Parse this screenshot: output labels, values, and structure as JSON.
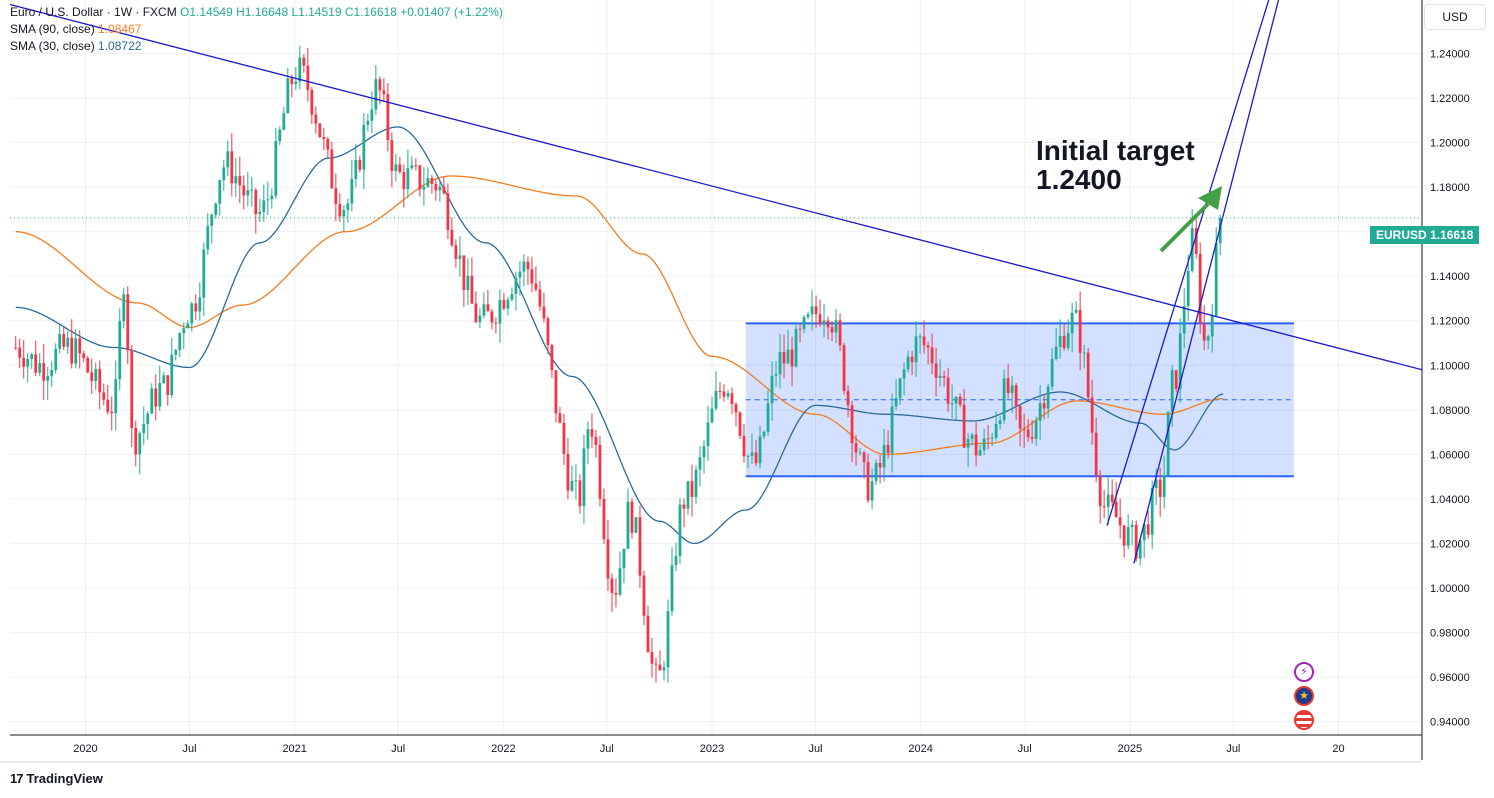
{
  "legend": {
    "title": "Euro / U.S. Dollar · 1W · FXCM",
    "ohlc": "O1.14549  H1.16648  L1.14519  C1.16618  +0.01407 (+1.22%)",
    "sma90_label": "SMA (90, close)",
    "sma90_value": "1.08467",
    "sma30_label": "SMA (30, close)",
    "sma30_value": "1.08722"
  },
  "currency": "USD",
  "price_tag": {
    "symbol": "EURUSD",
    "value": "1.16618"
  },
  "annotation": {
    "line1": "Initial target",
    "line2": "1.2400"
  },
  "brand": "TradingView",
  "icons": [
    "flash-icon",
    "eu-flag-icon",
    "us-flag-icon"
  ],
  "colors": {
    "up": "#22ab94",
    "down": "#f23645",
    "sma90": "#f57c1f",
    "sma30": "#2a6b9c",
    "trendline": "#1a1acc",
    "range": "#2962ff",
    "arrow": "#43a047"
  },
  "chart_data": {
    "type": "candlestick",
    "instrument": "EURUSD",
    "timeframe": "1W",
    "x_tick_labels": [
      "2020",
      "Jul",
      "2021",
      "Jul",
      "2022",
      "Jul",
      "2023",
      "Jul",
      "2024",
      "Jul",
      "2025",
      "Jul",
      "20"
    ],
    "y_ticks": [
      "1.24000",
      "1.22000",
      "1.20000",
      "1.18000",
      "1.16000",
      "1.14000",
      "1.12000",
      "1.10000",
      "1.08000",
      "1.06000",
      "1.04000",
      "1.02000",
      "1.00000",
      "0.98000",
      "0.96000",
      "0.94000"
    ],
    "y_range": [
      0.934,
      1.264
    ],
    "x_range": [
      "2019-08-22",
      "2026-05-27"
    ],
    "price_path": [
      [
        "2019-09-01",
        1.108
      ],
      [
        "2019-10-15",
        1.1
      ],
      [
        "2019-12-01",
        1.108
      ],
      [
        "2020-02-20",
        1.082
      ],
      [
        "2020-03-09",
        1.14
      ],
      [
        "2020-03-23",
        1.067
      ],
      [
        "2020-05-15",
        1.09
      ],
      [
        "2020-07-01",
        1.125
      ],
      [
        "2020-09-01",
        1.19
      ],
      [
        "2020-11-01",
        1.168
      ],
      [
        "2021-01-06",
        1.232
      ],
      [
        "2021-03-31",
        1.172
      ],
      [
        "2021-05-25",
        1.224
      ],
      [
        "2021-07-01",
        1.185
      ],
      [
        "2021-09-01",
        1.182
      ],
      [
        "2021-11-24",
        1.12
      ],
      [
        "2022-02-10",
        1.144
      ],
      [
        "2022-05-13",
        1.04
      ],
      [
        "2022-06-01",
        1.075
      ],
      [
        "2022-07-14",
        1.0
      ],
      [
        "2022-08-10",
        1.034
      ],
      [
        "2022-09-27",
        0.958
      ],
      [
        "2022-11-15",
        1.04
      ],
      [
        "2023-01-26",
        1.092
      ],
      [
        "2023-03-15",
        1.055
      ],
      [
        "2023-05-01",
        1.102
      ],
      [
        "2023-07-18",
        1.126
      ],
      [
        "2023-10-03",
        1.046
      ],
      [
        "2023-12-28",
        1.11
      ],
      [
        "2024-04-16",
        1.062
      ],
      [
        "2024-06-01",
        1.088
      ],
      [
        "2024-06-26",
        1.068
      ],
      [
        "2024-09-25",
        1.12
      ],
      [
        "2024-11-22",
        1.035
      ],
      [
        "2025-01-13",
        1.02
      ],
      [
        "2025-02-25",
        1.045
      ],
      [
        "2025-03-18",
        1.092
      ],
      [
        "2025-04-21",
        1.155
      ],
      [
        "2025-05-12",
        1.11
      ],
      [
        "2025-06-13",
        1.166
      ]
    ],
    "sma90_path": [
      [
        "2019-09-01",
        1.16
      ],
      [
        "2020-04-01",
        1.128
      ],
      [
        "2020-07-01",
        1.117
      ],
      [
        "2020-10-01",
        1.127
      ],
      [
        "2021-04-01",
        1.16
      ],
      [
        "2021-10-01",
        1.185
      ],
      [
        "2022-05-10",
        1.176
      ],
      [
        "2022-09-01",
        1.15
      ],
      [
        "2023-01-01",
        1.104
      ],
      [
        "2023-07-01",
        1.078
      ],
      [
        "2023-11-01",
        1.06
      ],
      [
        "2024-05-01",
        1.065
      ],
      [
        "2024-10-01",
        1.084
      ],
      [
        "2025-03-01",
        1.078
      ],
      [
        "2025-06-13",
        1.085
      ]
    ],
    "sma30_path": [
      [
        "2019-09-01",
        1.126
      ],
      [
        "2020-02-20",
        1.108
      ],
      [
        "2020-07-01",
        1.099
      ],
      [
        "2020-11-01",
        1.155
      ],
      [
        "2021-03-01",
        1.193
      ],
      [
        "2021-07-01",
        1.207
      ],
      [
        "2021-12-01",
        1.155
      ],
      [
        "2022-05-01",
        1.095
      ],
      [
        "2022-10-01",
        1.03
      ],
      [
        "2022-12-01",
        1.02
      ],
      [
        "2023-03-01",
        1.035
      ],
      [
        "2023-07-01",
        1.082
      ],
      [
        "2023-11-01",
        1.078
      ],
      [
        "2024-04-01",
        1.075
      ],
      [
        "2024-09-01",
        1.088
      ],
      [
        "2025-01-20",
        1.074
      ],
      [
        "2025-03-20",
        1.062
      ],
      [
        "2025-06-13",
        1.087
      ]
    ],
    "range_box": {
      "from": "2023-03-01",
      "to": "2025-10-15",
      "top": 1.1188,
      "bottom": 1.0502,
      "mid": 1.0845
    },
    "trendline": {
      "from": [
        "2019-08-22",
        1.262
      ],
      "to": [
        "2026-05-27",
        1.098
      ]
    },
    "channel": {
      "line1": {
        "from": [
          "2024-11-22",
          1.028
        ],
        "to": [
          "2025-09-20",
          1.28
        ]
      },
      "line2": {
        "from": [
          "2025-01-08",
          1.011
        ],
        "to": [
          "2025-09-20",
          1.266
        ]
      }
    },
    "last_price": 1.16618
  }
}
